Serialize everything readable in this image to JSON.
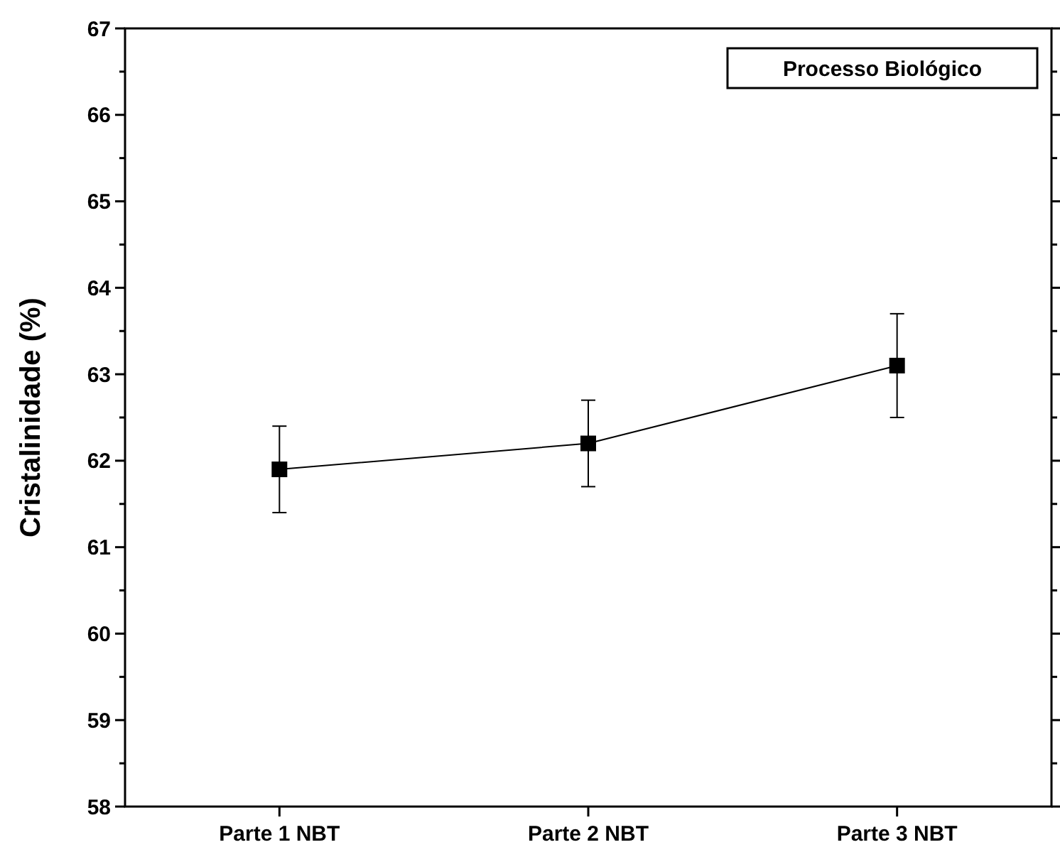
{
  "chart_data": {
    "type": "line",
    "ylabel": "Cristalinidade (%)",
    "categories": [
      "Parte 1 NBT",
      "Parte 2 NBT",
      "Parte 3 NBT"
    ],
    "series": [
      {
        "color": "#000000",
        "values": [
          61.9,
          62.2,
          63.1
        ],
        "errors": [
          [
            61.4,
            62.4
          ],
          [
            61.7,
            62.7
          ],
          [
            62.5,
            63.7
          ]
        ]
      }
    ],
    "ylim": [
      58,
      67
    ],
    "yticks": [
      58,
      {
        "value": 58.5,
        "label": null
      },
      59,
      {
        "value": 59.5,
        "label": null
      },
      60,
      {
        "value": 60.5,
        "label": null
      },
      61,
      {
        "value": 61.5,
        "label": null
      },
      62,
      {
        "value": 62.5,
        "label": null
      },
      63,
      {
        "value": 63.5,
        "label": null
      },
      64,
      {
        "value": 64.5,
        "label": null
      },
      65,
      {
        "value": 65.5,
        "label": null
      },
      66,
      {
        "value": 66.5,
        "label": null
      },
      67
    ],
    "marker": "square",
    "line_style": "solid",
    "grid": false,
    "annotations": [
      "Processo Biológico"
    ]
  }
}
